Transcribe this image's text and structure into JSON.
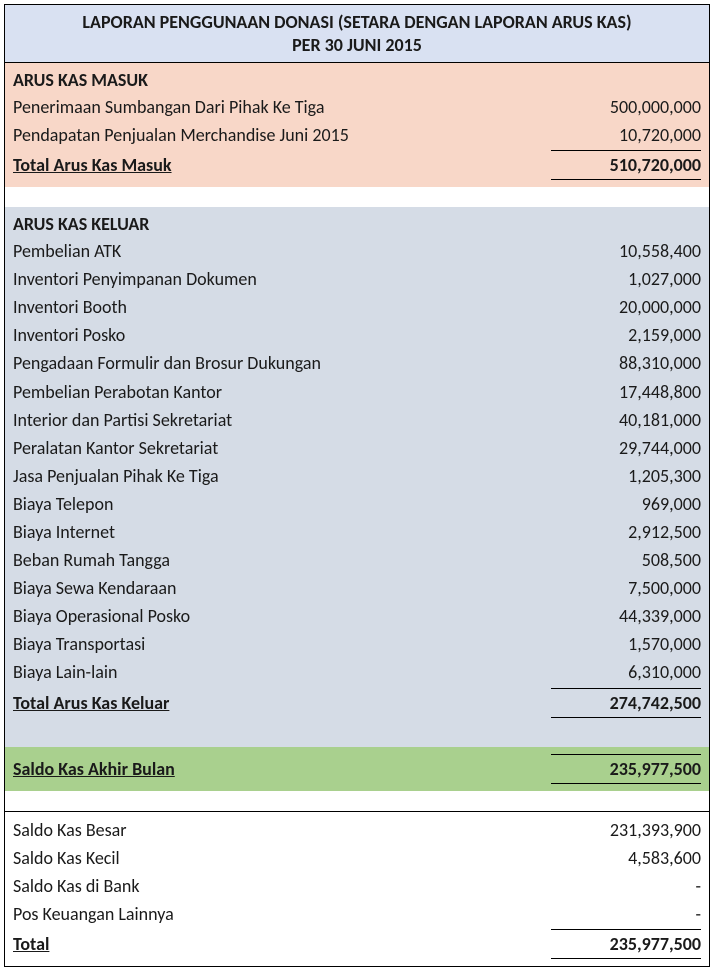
{
  "header": {
    "title_line1": "LAPORAN PENGGUNAAN DONASI (SETARA DENGAN LAPORAN ARUS KAS)",
    "title_line2": "PER 30 JUNI 2015"
  },
  "inflow": {
    "title": "ARUS KAS MASUK",
    "rows": [
      {
        "label": "Penerimaan Sumbangan Dari Pihak Ke Tiga",
        "value": "500,000,000"
      },
      {
        "label": "Pendapatan Penjualan Merchandise Juni 2015",
        "value": "10,720,000"
      }
    ],
    "total_label": "Total Arus Kas Masuk",
    "total_value": "510,720,000"
  },
  "outflow": {
    "title": "ARUS KAS KELUAR",
    "rows": [
      {
        "label": "Pembelian ATK",
        "value": "10,558,400"
      },
      {
        "label": "Inventori Penyimpanan Dokumen",
        "value": "1,027,000"
      },
      {
        "label": "Inventori Booth",
        "value": "20,000,000"
      },
      {
        "label": "Inventori Posko",
        "value": "2,159,000"
      },
      {
        "label": "Pengadaan Formulir dan Brosur Dukungan",
        "value": "88,310,000"
      },
      {
        "label": "Pembelian Perabotan Kantor",
        "value": "17,448,800"
      },
      {
        "label": "Interior dan Partisi Sekretariat",
        "value": "40,181,000"
      },
      {
        "label": "Peralatan Kantor Sekretariat",
        "value": "29,744,000"
      },
      {
        "label": "Jasa Penjualan Pihak Ke Tiga",
        "value": "1,205,300"
      },
      {
        "label": "Biaya Telepon",
        "value": "969,000"
      },
      {
        "label": "Biaya Internet",
        "value": "2,912,500"
      },
      {
        "label": "Beban Rumah Tangga",
        "value": "508,500"
      },
      {
        "label": "Biaya Sewa Kendaraan",
        "value": "7,500,000"
      },
      {
        "label": "Biaya Operasional Posko",
        "value": "44,339,000"
      },
      {
        "label": "Biaya Transportasi",
        "value": "1,570,000"
      },
      {
        "label": "Biaya Lain-lain",
        "value": "6,310,000"
      }
    ],
    "total_label": "Total Arus Kas Keluar",
    "total_value": "274,742,500"
  },
  "saldo": {
    "label": "Saldo Kas Akhir Bulan",
    "value": "235,977,500"
  },
  "detail": {
    "rows": [
      {
        "label": "Saldo Kas Besar",
        "value": "231,393,900"
      },
      {
        "label": "Saldo Kas Kecil",
        "value": "4,583,600"
      },
      {
        "label": "Saldo Kas di Bank",
        "value": "-"
      },
      {
        "label": "Pos Keuangan Lainnya",
        "value": "-"
      }
    ],
    "total_label": "Total",
    "total_value": "235,977,500"
  }
}
